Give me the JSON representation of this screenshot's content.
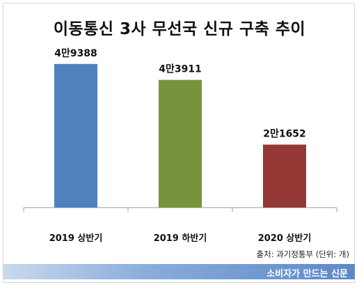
{
  "chart_data": {
    "type": "bar",
    "title": "이동통신 3사 무선국 신규 구축 추이",
    "categories": [
      "2019 상반기",
      "2019 하반기",
      "2020 상반기"
    ],
    "values": [
      49388,
      43911,
      21652
    ],
    "value_labels": [
      "4만9388",
      "4만3911",
      "2만1652"
    ],
    "colors": [
      "#4f81bd",
      "#77933c",
      "#953735"
    ],
    "ylim": [
      0,
      57000
    ],
    "grid": false,
    "legend": "none"
  },
  "source": "출처: 과기정통부 (단위: 개)",
  "footer": {
    "brand": "소비자가 만드는 신문"
  }
}
